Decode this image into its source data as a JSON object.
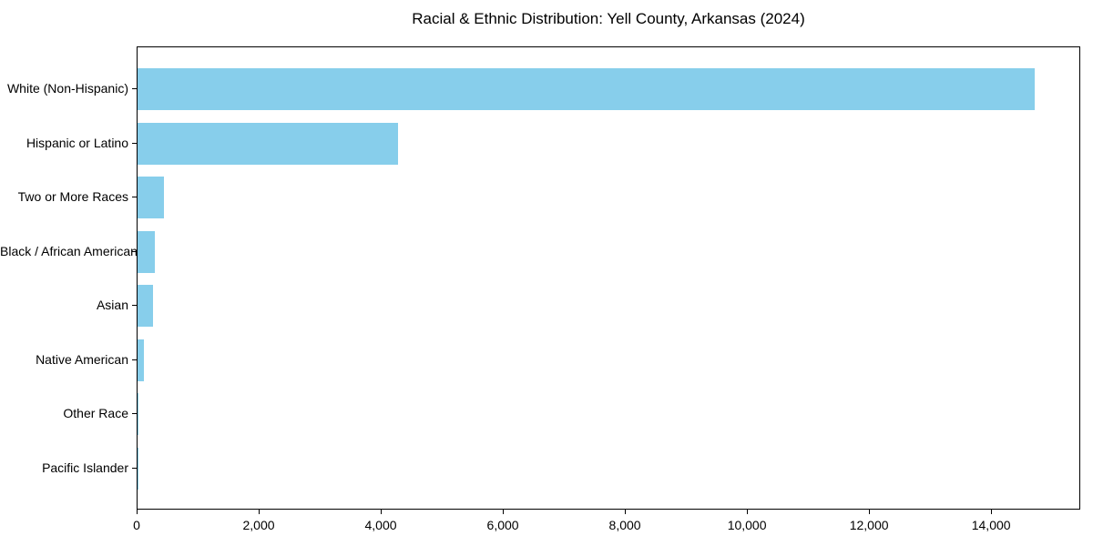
{
  "chart_data": {
    "type": "bar",
    "orientation": "horizontal",
    "title": "Racial & Ethnic Distribution: Yell County, Arkansas (2024)",
    "categories": [
      "White (Non-Hispanic)",
      "Hispanic or Latino",
      "Two or More Races",
      "Black / African American",
      "Asian",
      "Native American",
      "Other Race",
      "Pacific Islander"
    ],
    "values": [
      14700,
      4270,
      440,
      290,
      255,
      100,
      15,
      5
    ],
    "title_text": "",
    "xlabel": "",
    "ylabel": "",
    "xlim": [
      0,
      15460
    ],
    "x_ticks": [
      0,
      2000,
      4000,
      6000,
      8000,
      10000,
      12000,
      14000
    ],
    "x_tick_labels": [
      "0",
      "2,000",
      "4,000",
      "6,000",
      "8,000",
      "10,000",
      "12,000",
      "14,000"
    ],
    "bar_color": "#87CEEB",
    "axis_color": "#000000",
    "grid": false,
    "legend": null
  }
}
